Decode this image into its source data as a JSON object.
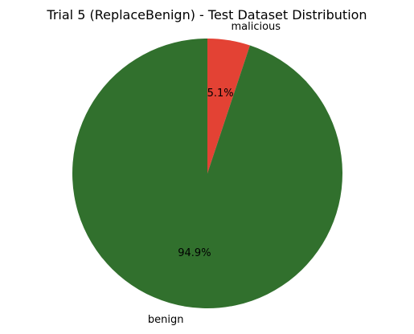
{
  "chart_data": {
    "type": "pie",
    "title": "Trial 5 (ReplaceBenign) - Test Dataset Distribution",
    "start_angle_deg": 90,
    "direction": "clockwise",
    "slices": [
      {
        "label": "malicious",
        "value": 5.1,
        "pct_label": "5.1%",
        "color": "#e34234"
      },
      {
        "label": "benign",
        "value": 94.9,
        "pct_label": "94.9%",
        "color": "#31702d"
      }
    ]
  }
}
